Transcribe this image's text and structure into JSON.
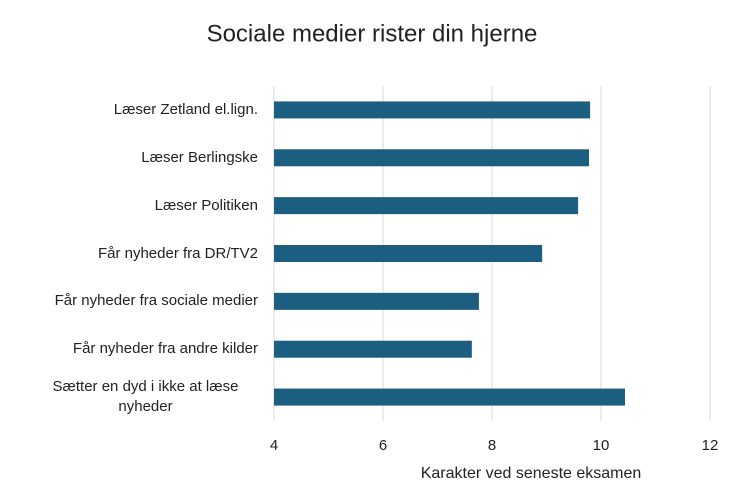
{
  "chart_data": {
    "type": "barh",
    "title": "Sociale medier rister din hjerne",
    "x_label": "Karakter ved seneste eksamen",
    "categories": [
      "Læser Zetland el.lign.",
      "Læser Berlingske",
      "Læser Politiken",
      "Får nyheder fra DR/TV2",
      "Får nyheder fra sociale medier",
      "Får nyheder fra andre kilder",
      "Sætter en dyd i ikke at læse nyheder"
    ],
    "values": [
      9.8,
      9.78,
      9.58,
      8.92,
      7.76,
      7.63,
      10.44
    ],
    "color": "#1b5e80",
    "xlim": [
      4,
      12
    ],
    "xticks": [
      4,
      6,
      8,
      10,
      12
    ],
    "grid": true
  }
}
